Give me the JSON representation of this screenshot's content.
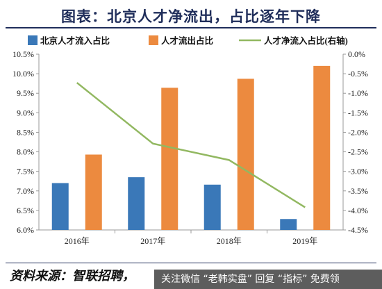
{
  "title": "图表：北京人才净流出，占比逐年下降",
  "source": "资料来源：智联招聘，",
  "watermark": "关注微信 “老韩实盘” 回复 “指标” 免费领",
  "colors": {
    "inflow_bar": "#3a78b8",
    "outflow_bar": "#ec8a3f",
    "net_line": "#92b861",
    "title_color": "#1f2d5a"
  },
  "chart_data": {
    "type": "bar",
    "categories": [
      "2016年",
      "2017年",
      "2018年",
      "2019年"
    ],
    "series": [
      {
        "name": "北京人才流入占比",
        "type": "bar",
        "axis": "left",
        "values": [
          7.2,
          7.35,
          7.16,
          6.28
        ]
      },
      {
        "name": "人才流出占比",
        "type": "bar",
        "axis": "left",
        "values": [
          7.93,
          9.64,
          9.87,
          10.2
        ]
      },
      {
        "name": "人才净流入占比(右轴)",
        "type": "line",
        "axis": "right",
        "values": [
          -0.73,
          -2.29,
          -2.71,
          -3.92
        ]
      }
    ],
    "ylim_left": [
      6.0,
      10.5
    ],
    "ylim_right": [
      -4.5,
      0.0
    ],
    "yticks_left": [
      "6.0%",
      "6.5%",
      "7.0%",
      "7.5%",
      "8.0%",
      "8.5%",
      "9.0%",
      "9.5%",
      "10.0%",
      "10.5%"
    ],
    "yticks_right": [
      "-4.5%",
      "-4.0%",
      "-3.5%",
      "-3.0%",
      "-2.5%",
      "-2.0%",
      "-1.5%",
      "-1.0%",
      "-0.5%",
      "0.0%"
    ],
    "legend_position": "top",
    "grid": false
  }
}
